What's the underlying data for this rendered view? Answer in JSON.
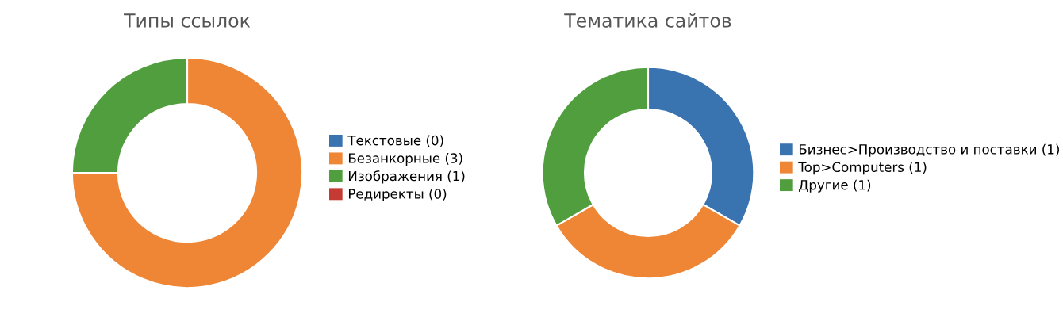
{
  "chart_data": [
    {
      "type": "donut",
      "title": "Типы ссылок",
      "categories": [
        "Текстовые (0)",
        "Безанкорные (3)",
        "Изображения (1)",
        "Редиректы (0)"
      ],
      "values": [
        0,
        3,
        1,
        0
      ],
      "colors": [
        "#3a74b0",
        "#ef8636",
        "#519e3e",
        "#c53a32"
      ],
      "legend": "right"
    },
    {
      "type": "donut",
      "title": "Тематика сайтов",
      "categories": [
        "Бизнес>Производство и поставки (1)",
        "Top>Computers (1)",
        "Другие (1)"
      ],
      "values": [
        1,
        1,
        1
      ],
      "colors": [
        "#3a74b0",
        "#ef8636",
        "#519e3e"
      ],
      "legend": "right"
    }
  ]
}
